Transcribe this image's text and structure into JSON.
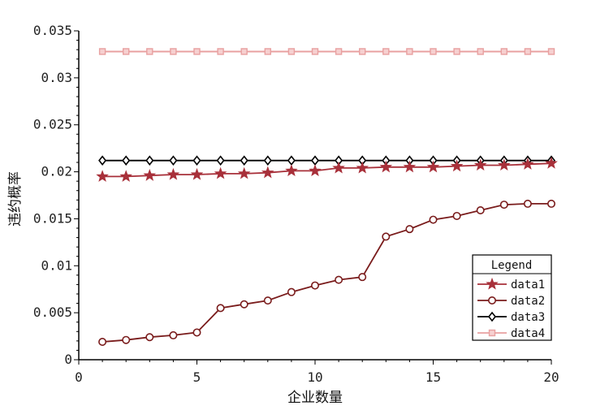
{
  "chart_data": {
    "type": "line",
    "xlabel": "企业数量",
    "ylabel": "违约概率",
    "xlim": [
      0,
      20
    ],
    "ylim": [
      0,
      0.035
    ],
    "x_ticks": [
      "0",
      "5",
      "10",
      "15",
      "20"
    ],
    "y_ticks": [
      "0",
      "0.005",
      "0.01",
      "0.015",
      "0.02",
      "0.025",
      "0.03",
      "0.035"
    ],
    "grid": false,
    "legend": {
      "title": "Legend",
      "placement": "bottom-right"
    },
    "x": [
      1,
      2,
      3,
      4,
      5,
      6,
      7,
      8,
      9,
      10,
      11,
      12,
      13,
      14,
      15,
      16,
      17,
      18,
      19,
      20
    ],
    "series": [
      {
        "name": "data1",
        "marker": "star",
        "color": "#a8303a",
        "values": [
          0.0195,
          0.0195,
          0.0196,
          0.0197,
          0.0197,
          0.0198,
          0.0198,
          0.0199,
          0.0201,
          0.0201,
          0.0204,
          0.0204,
          0.0205,
          0.0205,
          0.0205,
          0.0206,
          0.0207,
          0.0207,
          0.0208,
          0.0209
        ]
      },
      {
        "name": "data2",
        "marker": "circle",
        "color": "#7a1c1c",
        "values": [
          0.0019,
          0.0021,
          0.0024,
          0.0026,
          0.0029,
          0.0055,
          0.0059,
          0.0063,
          0.0072,
          0.0079,
          0.0085,
          0.0088,
          0.0131,
          0.0139,
          0.0149,
          0.0153,
          0.0159,
          0.0165,
          0.0166,
          0.0166
        ]
      },
      {
        "name": "data3",
        "marker": "diamond",
        "color": "#000000",
        "values": [
          0.0212,
          0.0212,
          0.0212,
          0.0212,
          0.0212,
          0.0212,
          0.0212,
          0.0212,
          0.0212,
          0.0212,
          0.0212,
          0.0212,
          0.0212,
          0.0212,
          0.0212,
          0.0212,
          0.0212,
          0.0212,
          0.0212,
          0.0212
        ]
      },
      {
        "name": "data4",
        "marker": "square",
        "color": "#e8a0a0",
        "values": [
          0.0328,
          0.0328,
          0.0328,
          0.0328,
          0.0328,
          0.0328,
          0.0328,
          0.0328,
          0.0328,
          0.0328,
          0.0328,
          0.0328,
          0.0328,
          0.0328,
          0.0328,
          0.0328,
          0.0328,
          0.0328,
          0.0328,
          0.0328
        ]
      }
    ]
  }
}
